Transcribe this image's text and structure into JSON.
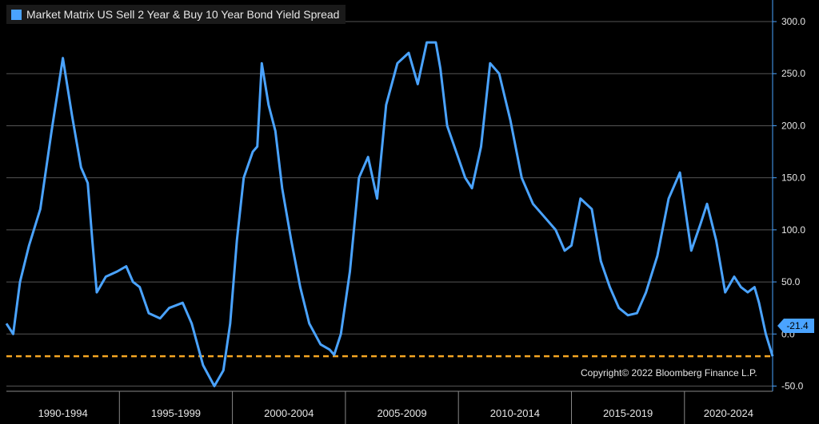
{
  "legend": {
    "label": "Market Matrix US Sell 2 Year & Buy 10 Year Bond Yield Spread",
    "color": "#4aa3ff"
  },
  "copyright": "Copyright© 2022 Bloomberg Finance L.P.",
  "last_value_label": "-21.4",
  "colors": {
    "background": "#000000",
    "series": "#4aa3ff",
    "reference_line": "#f5a623",
    "grid": "#555555",
    "text": "#e6e6e6"
  },
  "chart_data": {
    "type": "line",
    "title": "",
    "xlabel": "",
    "ylabel": "",
    "ylim": [
      -55,
      310
    ],
    "yticks": [
      300,
      250,
      200,
      150,
      100,
      50,
      0,
      -50
    ],
    "ytick_labels": [
      "300.0",
      "250.0",
      "200.0",
      "150.0",
      "100.0",
      "50.0",
      "0.0",
      "-50.0"
    ],
    "y_axis_position": "right",
    "grid": true,
    "xlim": [
      1989.0,
      2022.9
    ],
    "x_period_labels": [
      "1990-1994",
      "1995-1999",
      "2000-2004",
      "2005-2009",
      "2010-2014",
      "2015-2019",
      "2020-2024"
    ],
    "x_period_bounds": [
      1989.0,
      1994.0,
      1999.0,
      2004.0,
      2009.0,
      2014.0,
      2019.0,
      2022.9
    ],
    "reference_line": {
      "y": -21.4,
      "style": "dashed"
    },
    "legend_position": "top-left",
    "series": [
      {
        "name": "Market Matrix US Sell 2 Year & Buy 10 Year Bond Yield Spread",
        "x": [
          1989.0,
          1989.3,
          1989.6,
          1990.0,
          1990.5,
          1991.0,
          1991.5,
          1991.9,
          1992.3,
          1992.6,
          1992.8,
          1993.0,
          1993.4,
          1993.9,
          1994.3,
          1994.6,
          1994.9,
          1995.3,
          1995.8,
          1996.2,
          1996.8,
          1997.2,
          1997.7,
          1998.2,
          1998.6,
          1998.9,
          1999.2,
          1999.5,
          1999.9,
          2000.1,
          2000.3,
          2000.6,
          2000.9,
          2001.2,
          2001.6,
          2002.0,
          2002.4,
          2002.9,
          2003.3,
          2003.5,
          2003.8,
          2004.2,
          2004.6,
          2005.0,
          2005.4,
          2005.8,
          2006.3,
          2006.8,
          2007.2,
          2007.6,
          2008.0,
          2008.2,
          2008.5,
          2008.9,
          2009.3,
          2009.6,
          2010.0,
          2010.4,
          2010.8,
          2011.3,
          2011.8,
          2012.3,
          2012.9,
          2013.3,
          2013.7,
          2014.0,
          2014.4,
          2014.9,
          2015.3,
          2015.7,
          2016.1,
          2016.5,
          2016.9,
          2017.3,
          2017.8,
          2018.3,
          2018.8,
          2019.3,
          2019.7,
          2020.0,
          2020.4,
          2020.8,
          2021.2,
          2021.5,
          2021.8,
          2022.1,
          2022.3,
          2022.6,
          2022.9
        ],
        "values": [
          10,
          0,
          50,
          85,
          120,
          195,
          265,
          210,
          160,
          145,
          90,
          40,
          55,
          60,
          65,
          50,
          45,
          20,
          15,
          25,
          30,
          10,
          -30,
          -50,
          -35,
          10,
          90,
          150,
          175,
          180,
          260,
          220,
          195,
          140,
          90,
          45,
          10,
          -10,
          -15,
          -20,
          0,
          60,
          150,
          170,
          130,
          220,
          260,
          270,
          240,
          280,
          280,
          255,
          200,
          175,
          150,
          140,
          180,
          260,
          250,
          205,
          150,
          125,
          110,
          100,
          80,
          85,
          130,
          120,
          70,
          45,
          25,
          18,
          20,
          40,
          75,
          130,
          155,
          80,
          105,
          125,
          90,
          40,
          55,
          45,
          40,
          45,
          30,
          0,
          -21.4
        ]
      }
    ]
  }
}
